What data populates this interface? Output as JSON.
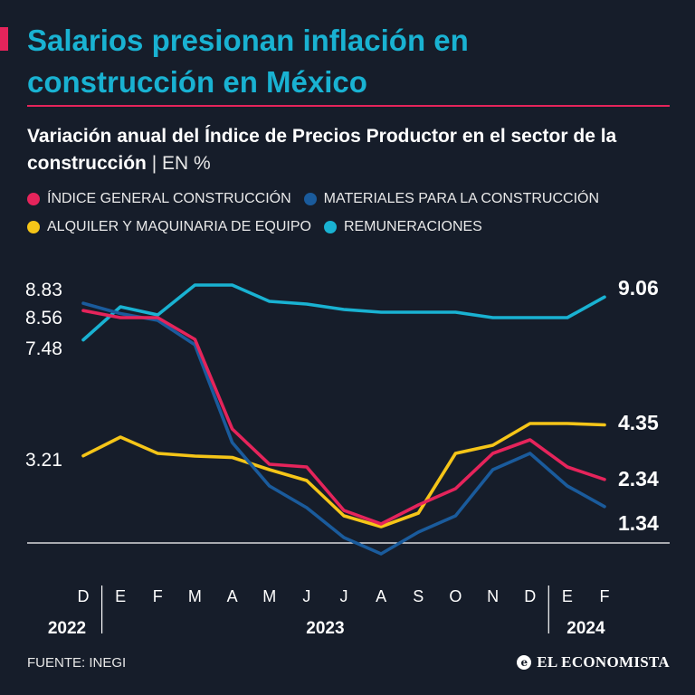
{
  "header": {
    "title_line1": "Salarios presionan inflación en",
    "title_line2": "construcción  en México",
    "subtitle_bold": "Variación anual del Índice de Precios Productor en el sector de la construcción",
    "subtitle_unit": "| EN %"
  },
  "colors": {
    "general": "#e5245b",
    "materiales": "#1a5b9c",
    "alquiler": "#f5c518",
    "remuneraciones": "#19b2d2",
    "background": "#161d2a"
  },
  "chart_data": {
    "type": "line",
    "title": "Variación anual del Índice de Precios Productor en el sector de la construcción",
    "unit": "EN %",
    "categories": [
      "D",
      "E",
      "F",
      "M",
      "A",
      "M",
      "J",
      "J",
      "A",
      "S",
      "O",
      "N",
      "D",
      "E",
      "F"
    ],
    "years": [
      {
        "label": "2022",
        "from": 0,
        "to": 0
      },
      {
        "label": "2023",
        "from": 1,
        "to": 12
      },
      {
        "label": "2024",
        "from": 13,
        "to": 14
      }
    ],
    "ylim": [
      0,
      10
    ],
    "grid": false,
    "legend": "top",
    "series": [
      {
        "name": "ÍNDICE GENERAL CONSTRUCCIÓN",
        "key": "general",
        "values": [
          8.56,
          8.3,
          8.3,
          7.5,
          4.2,
          2.9,
          2.8,
          1.2,
          0.7,
          1.4,
          2.0,
          3.3,
          3.8,
          2.8,
          2.34
        ]
      },
      {
        "name": "MATERIALES PARA LA CONSTRUCCIÓN",
        "key": "materiales",
        "values": [
          8.83,
          8.45,
          8.2,
          7.3,
          3.7,
          2.1,
          1.3,
          0.2,
          -0.4,
          0.4,
          1.0,
          2.7,
          3.3,
          2.1,
          1.34
        ]
      },
      {
        "name": "ALQUILER Y MAQUINARIA DE EQUIPO",
        "key": "alquiler",
        "values": [
          3.21,
          3.9,
          3.3,
          3.2,
          3.15,
          2.7,
          2.3,
          1.0,
          0.6,
          1.1,
          3.3,
          3.6,
          4.4,
          4.4,
          4.35
        ]
      },
      {
        "name": "REMUNERACIONES",
        "key": "remuneraciones",
        "values": [
          7.48,
          8.7,
          8.4,
          9.5,
          9.5,
          8.9,
          8.8,
          8.6,
          8.5,
          8.5,
          8.5,
          8.3,
          8.3,
          8.3,
          9.06
        ]
      }
    ],
    "start_labels": [
      "8.83",
      "8.56",
      "7.48",
      "3.21"
    ],
    "end_labels": [
      {
        "key": "remuneraciones",
        "text": "9.06"
      },
      {
        "key": "alquiler",
        "text": "4.35"
      },
      {
        "key": "general",
        "text": "2.34"
      },
      {
        "key": "materiales",
        "text": "1.34"
      }
    ]
  },
  "footer": {
    "source": "FUENTE: INEGI",
    "brand": "EL ECONOMISTA",
    "brand_mark": "e"
  }
}
